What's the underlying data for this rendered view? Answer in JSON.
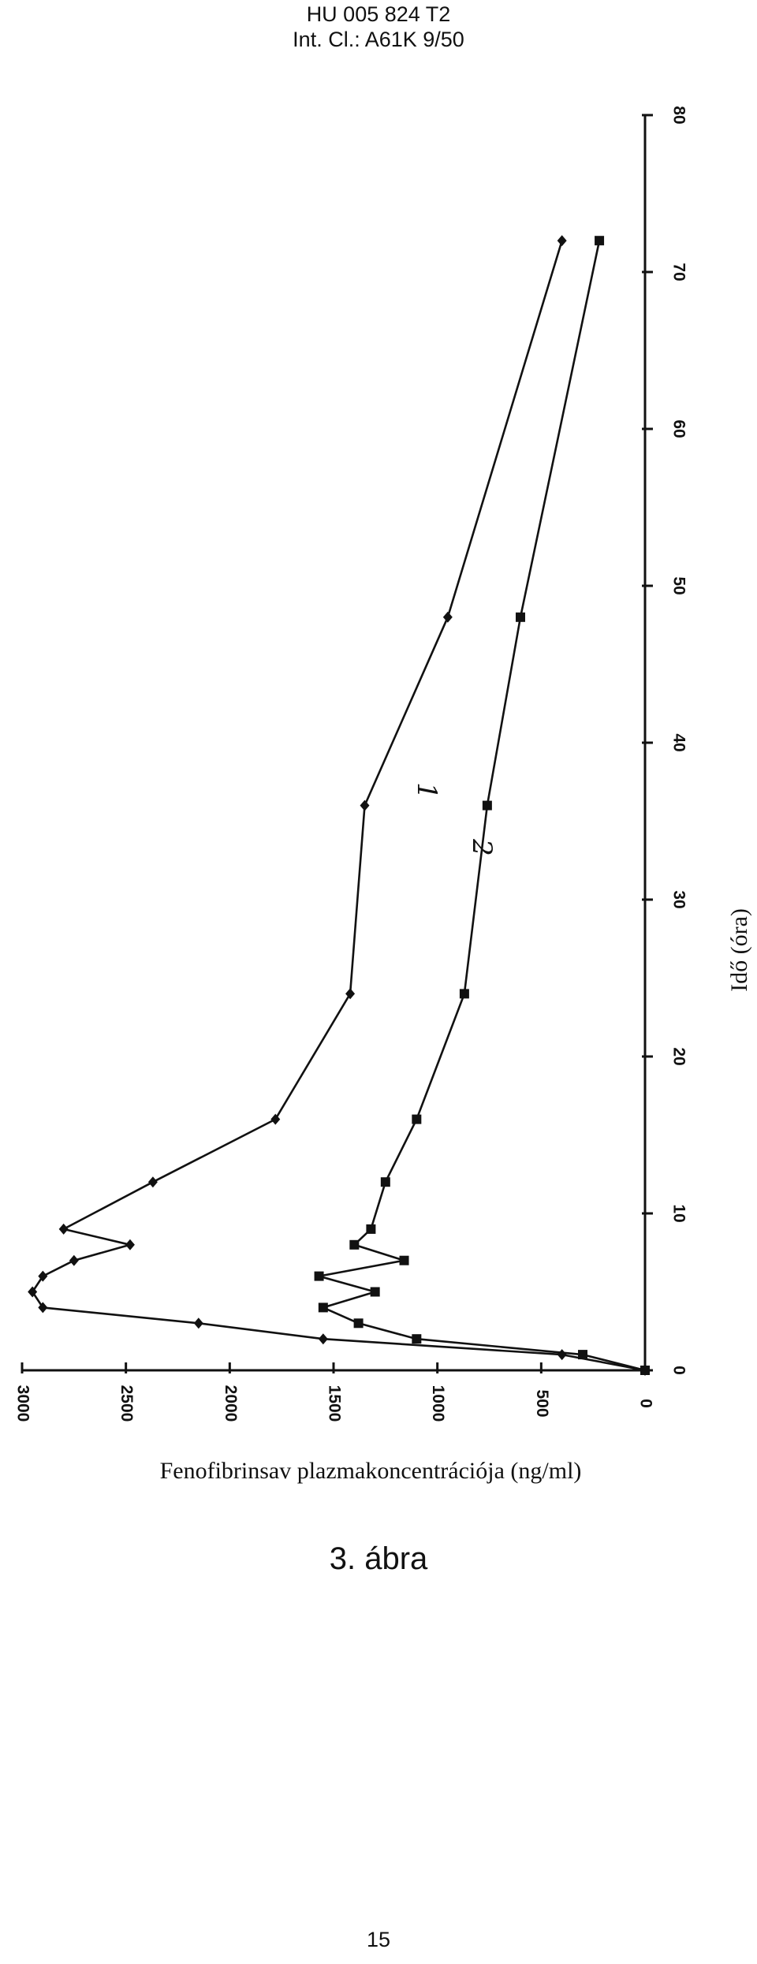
{
  "header": {
    "patent_number": "HU 005 824 T2",
    "classification": "Int. Cl.: A61K 9/50"
  },
  "figure_caption": "3. ábra",
  "page_number": "15",
  "chart_data": {
    "type": "line",
    "orientation": "rotated 90° counter-clockwise on the page",
    "xlabel": "Idő (óra)",
    "ylabel": "Fenofibrinsav plazmakoncentrációja (ng/ml)",
    "xlim": [
      0,
      80
    ],
    "ylim": [
      0,
      3000
    ],
    "x_ticks": [
      "0",
      "10",
      "20",
      "30",
      "40",
      "50",
      "60",
      "70",
      "80"
    ],
    "y_ticks": [
      "0",
      "500",
      "1000",
      "1500",
      "2000",
      "2500",
      "3000"
    ],
    "grid": false,
    "legend": "none",
    "series": [
      {
        "name": "1",
        "marker": "diamond",
        "x": [
          0,
          1,
          2,
          3,
          4,
          5,
          6,
          7,
          8,
          9,
          12,
          16,
          24,
          36,
          48,
          72
        ],
        "y": [
          0,
          400,
          1550,
          2150,
          2900,
          2950,
          2900,
          2750,
          2480,
          2800,
          2370,
          1780,
          1420,
          1350,
          950,
          400
        ]
      },
      {
        "name": "2",
        "marker": "square",
        "x": [
          0,
          1,
          2,
          3,
          4,
          5,
          6,
          7,
          8,
          9,
          12,
          16,
          24,
          36,
          48,
          72
        ],
        "y": [
          0,
          300,
          1100,
          1380,
          1550,
          1300,
          1570,
          1160,
          1400,
          1320,
          1250,
          1100,
          870,
          760,
          600,
          220
        ]
      }
    ]
  }
}
